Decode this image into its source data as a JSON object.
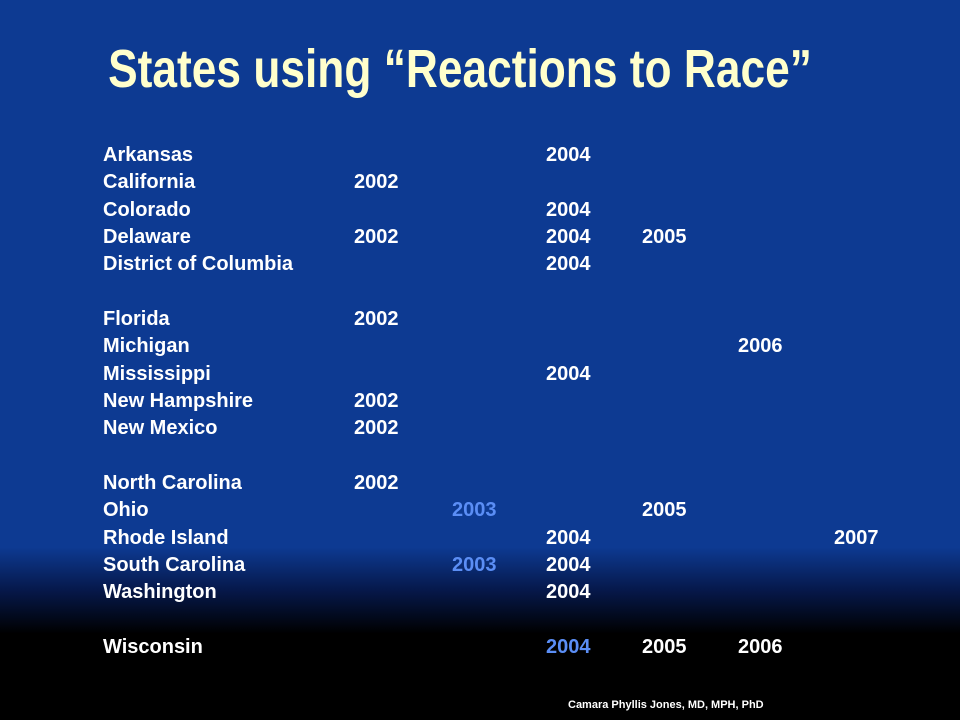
{
  "title": "States using “Reactions to Race”",
  "table": {
    "groups": [
      [
        {
          "state": "Arkansas",
          "years": [
            null,
            null,
            "2004",
            null,
            null,
            null
          ]
        },
        {
          "state": "California",
          "years": [
            "2002",
            null,
            null,
            null,
            null,
            null
          ]
        },
        {
          "state": "Colorado",
          "years": [
            null,
            null,
            "2004",
            null,
            null,
            null
          ]
        },
        {
          "state": "Delaware",
          "years": [
            "2002",
            null,
            "2004",
            "2005",
            null,
            null
          ]
        },
        {
          "state": "District of Columbia",
          "years": [
            null,
            null,
            "2004",
            null,
            null,
            null
          ]
        }
      ],
      [
        {
          "state": "Florida",
          "years": [
            "2002",
            null,
            null,
            null,
            null,
            null
          ]
        },
        {
          "state": "Michigan",
          "years": [
            null,
            null,
            null,
            null,
            "2006",
            null
          ]
        },
        {
          "state": "Mississippi",
          "years": [
            null,
            null,
            "2004",
            null,
            null,
            null
          ]
        },
        {
          "state": "New Hampshire",
          "years": [
            "2002",
            null,
            null,
            null,
            null,
            null
          ]
        },
        {
          "state": "New Mexico",
          "years": [
            "2002",
            null,
            null,
            null,
            null,
            null
          ]
        }
      ],
      [
        {
          "state": "North Carolina",
          "years": [
            "2002",
            null,
            null,
            null,
            null,
            null
          ]
        },
        {
          "state": "Ohio",
          "years": [
            null,
            {
              "text": "2003",
              "color": "#5b8ef5"
            },
            null,
            "2005",
            null,
            null
          ]
        },
        {
          "state": "Rhode Island",
          "years": [
            null,
            null,
            "2004",
            null,
            null,
            "2007"
          ]
        },
        {
          "state": "South Carolina",
          "years": [
            null,
            {
              "text": "2003",
              "color": "#5b8ef5"
            },
            "2004",
            null,
            null,
            null
          ]
        },
        {
          "state": "Washington",
          "years": [
            null,
            null,
            "2004",
            null,
            null,
            null
          ]
        }
      ],
      [
        {
          "state": "Wisconsin",
          "years": [
            null,
            null,
            {
              "text": "2004",
              "color": "#5b8ef5"
            },
            "2005",
            "2006",
            null
          ]
        }
      ]
    ]
  },
  "footer": "Camara Phyllis Jones, MD, MPH, PhD"
}
